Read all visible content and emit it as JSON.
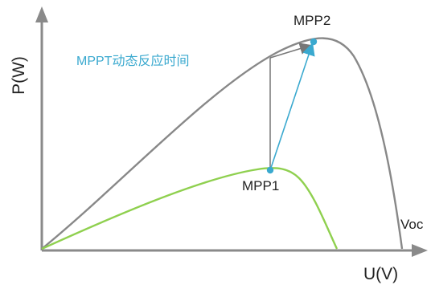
{
  "axes": {
    "y_label": "P(W)",
    "x_label": "U(V)"
  },
  "labels": {
    "voc": "Voc",
    "mpp1": "MPP1",
    "mpp2": "MPP2",
    "annotation": "MPPT动态反应时间"
  },
  "colors": {
    "axis": "#8a8a8a",
    "curve_high": "#888888",
    "curve_low": "#8fd04f",
    "tracking_arrow": "#3aa9cf",
    "vertical_arrow": "#777777",
    "point": "#3aa9cf"
  }
}
